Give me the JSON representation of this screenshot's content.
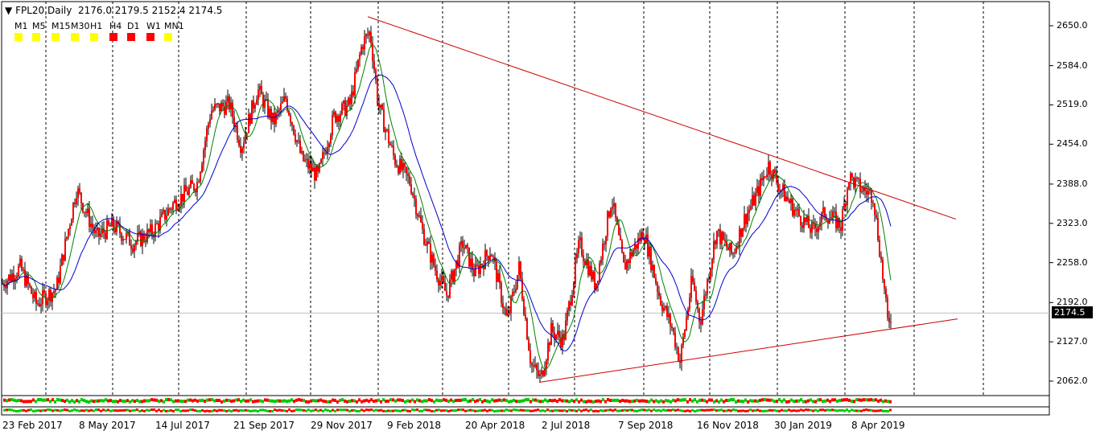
{
  "header": {
    "symbol": "FPL20",
    "timeframe": "Daily",
    "ohlc": "2176.0 2179.5 2152.4 2174.5"
  },
  "timeframes": [
    {
      "label": "M1",
      "color": "#ffff00"
    },
    {
      "label": "M5",
      "color": "#ffff00"
    },
    {
      "label": "M15",
      "color": "#ffff00"
    },
    {
      "label": "M30",
      "color": "#ffff00"
    },
    {
      "label": "H1",
      "color": "#ffff00"
    },
    {
      "label": "H4",
      "color": "#ff0000"
    },
    {
      "label": "D1",
      "color": "#ff0000"
    },
    {
      "label": "W1",
      "color": "#ff0000"
    },
    {
      "label": "MN1",
      "color": "#ffff00"
    }
  ],
  "current_price": "2174.5",
  "chart_data": {
    "type": "candlestick",
    "ylim": [
      2035,
      2670
    ],
    "yticks": [
      "2650.0",
      "2584.0",
      "2519.0",
      "2454.0",
      "2388.0",
      "2323.0",
      "2258.0",
      "2192.0",
      "2127.0",
      "2062.0"
    ],
    "xticks": [
      "23 Feb 2017",
      "8 May 2017",
      "14 Jul 2017",
      "21 Sep 2017",
      "29 Nov 2017",
      "9 Feb 2018",
      "20 Apr 2018",
      "2 Jul 2018",
      "7 Sep 2018",
      "16 Nov 2018",
      "30 Jan 2019",
      "8 Apr 2019"
    ],
    "price_path": [
      [
        0,
        2220
      ],
      [
        25,
        2250
      ],
      [
        45,
        2190
      ],
      [
        70,
        2215
      ],
      [
        95,
        2380
      ],
      [
        120,
        2300
      ],
      [
        140,
        2320
      ],
      [
        165,
        2290
      ],
      [
        190,
        2310
      ],
      [
        215,
        2355
      ],
      [
        245,
        2390
      ],
      [
        262,
        2510
      ],
      [
        285,
        2520
      ],
      [
        300,
        2450
      ],
      [
        320,
        2545
      ],
      [
        340,
        2490
      ],
      [
        355,
        2530
      ],
      [
        375,
        2430
      ],
      [
        395,
        2400
      ],
      [
        415,
        2500
      ],
      [
        435,
        2520
      ],
      [
        450,
        2620
      ],
      [
        460,
        2640
      ],
      [
        470,
        2520
      ],
      [
        490,
        2430
      ],
      [
        510,
        2390
      ],
      [
        525,
        2310
      ],
      [
        540,
        2250
      ],
      [
        555,
        2205
      ],
      [
        575,
        2290
      ],
      [
        590,
        2240
      ],
      [
        610,
        2280
      ],
      [
        630,
        2160
      ],
      [
        645,
        2250
      ],
      [
        660,
        2090
      ],
      [
        672,
        2065
      ],
      [
        685,
        2145
      ],
      [
        700,
        2130
      ],
      [
        720,
        2290
      ],
      [
        740,
        2220
      ],
      [
        760,
        2365
      ],
      [
        775,
        2250
      ],
      [
        800,
        2310
      ],
      [
        820,
        2200
      ],
      [
        835,
        2150
      ],
      [
        845,
        2095
      ],
      [
        860,
        2230
      ],
      [
        870,
        2160
      ],
      [
        890,
        2310
      ],
      [
        910,
        2270
      ],
      [
        925,
        2330
      ],
      [
        940,
        2370
      ],
      [
        955,
        2420
      ],
      [
        970,
        2380
      ],
      [
        990,
        2340
      ],
      [
        1010,
        2310
      ],
      [
        1025,
        2340
      ],
      [
        1045,
        2320
      ],
      [
        1055,
        2400
      ],
      [
        1070,
        2380
      ],
      [
        1085,
        2370
      ],
      [
        1095,
        2260
      ],
      [
        1103,
        2160
      ],
      [
        1108,
        2175
      ]
    ],
    "resistance_line": [
      [
        457,
        2665
      ],
      [
        1188,
        2330
      ]
    ],
    "support_line": [
      [
        670,
        2060
      ],
      [
        1190,
        2165
      ]
    ],
    "ma_fast_color": "#008000",
    "ma_slow_color": "#0000cc",
    "candle_color": "#ff0000"
  }
}
